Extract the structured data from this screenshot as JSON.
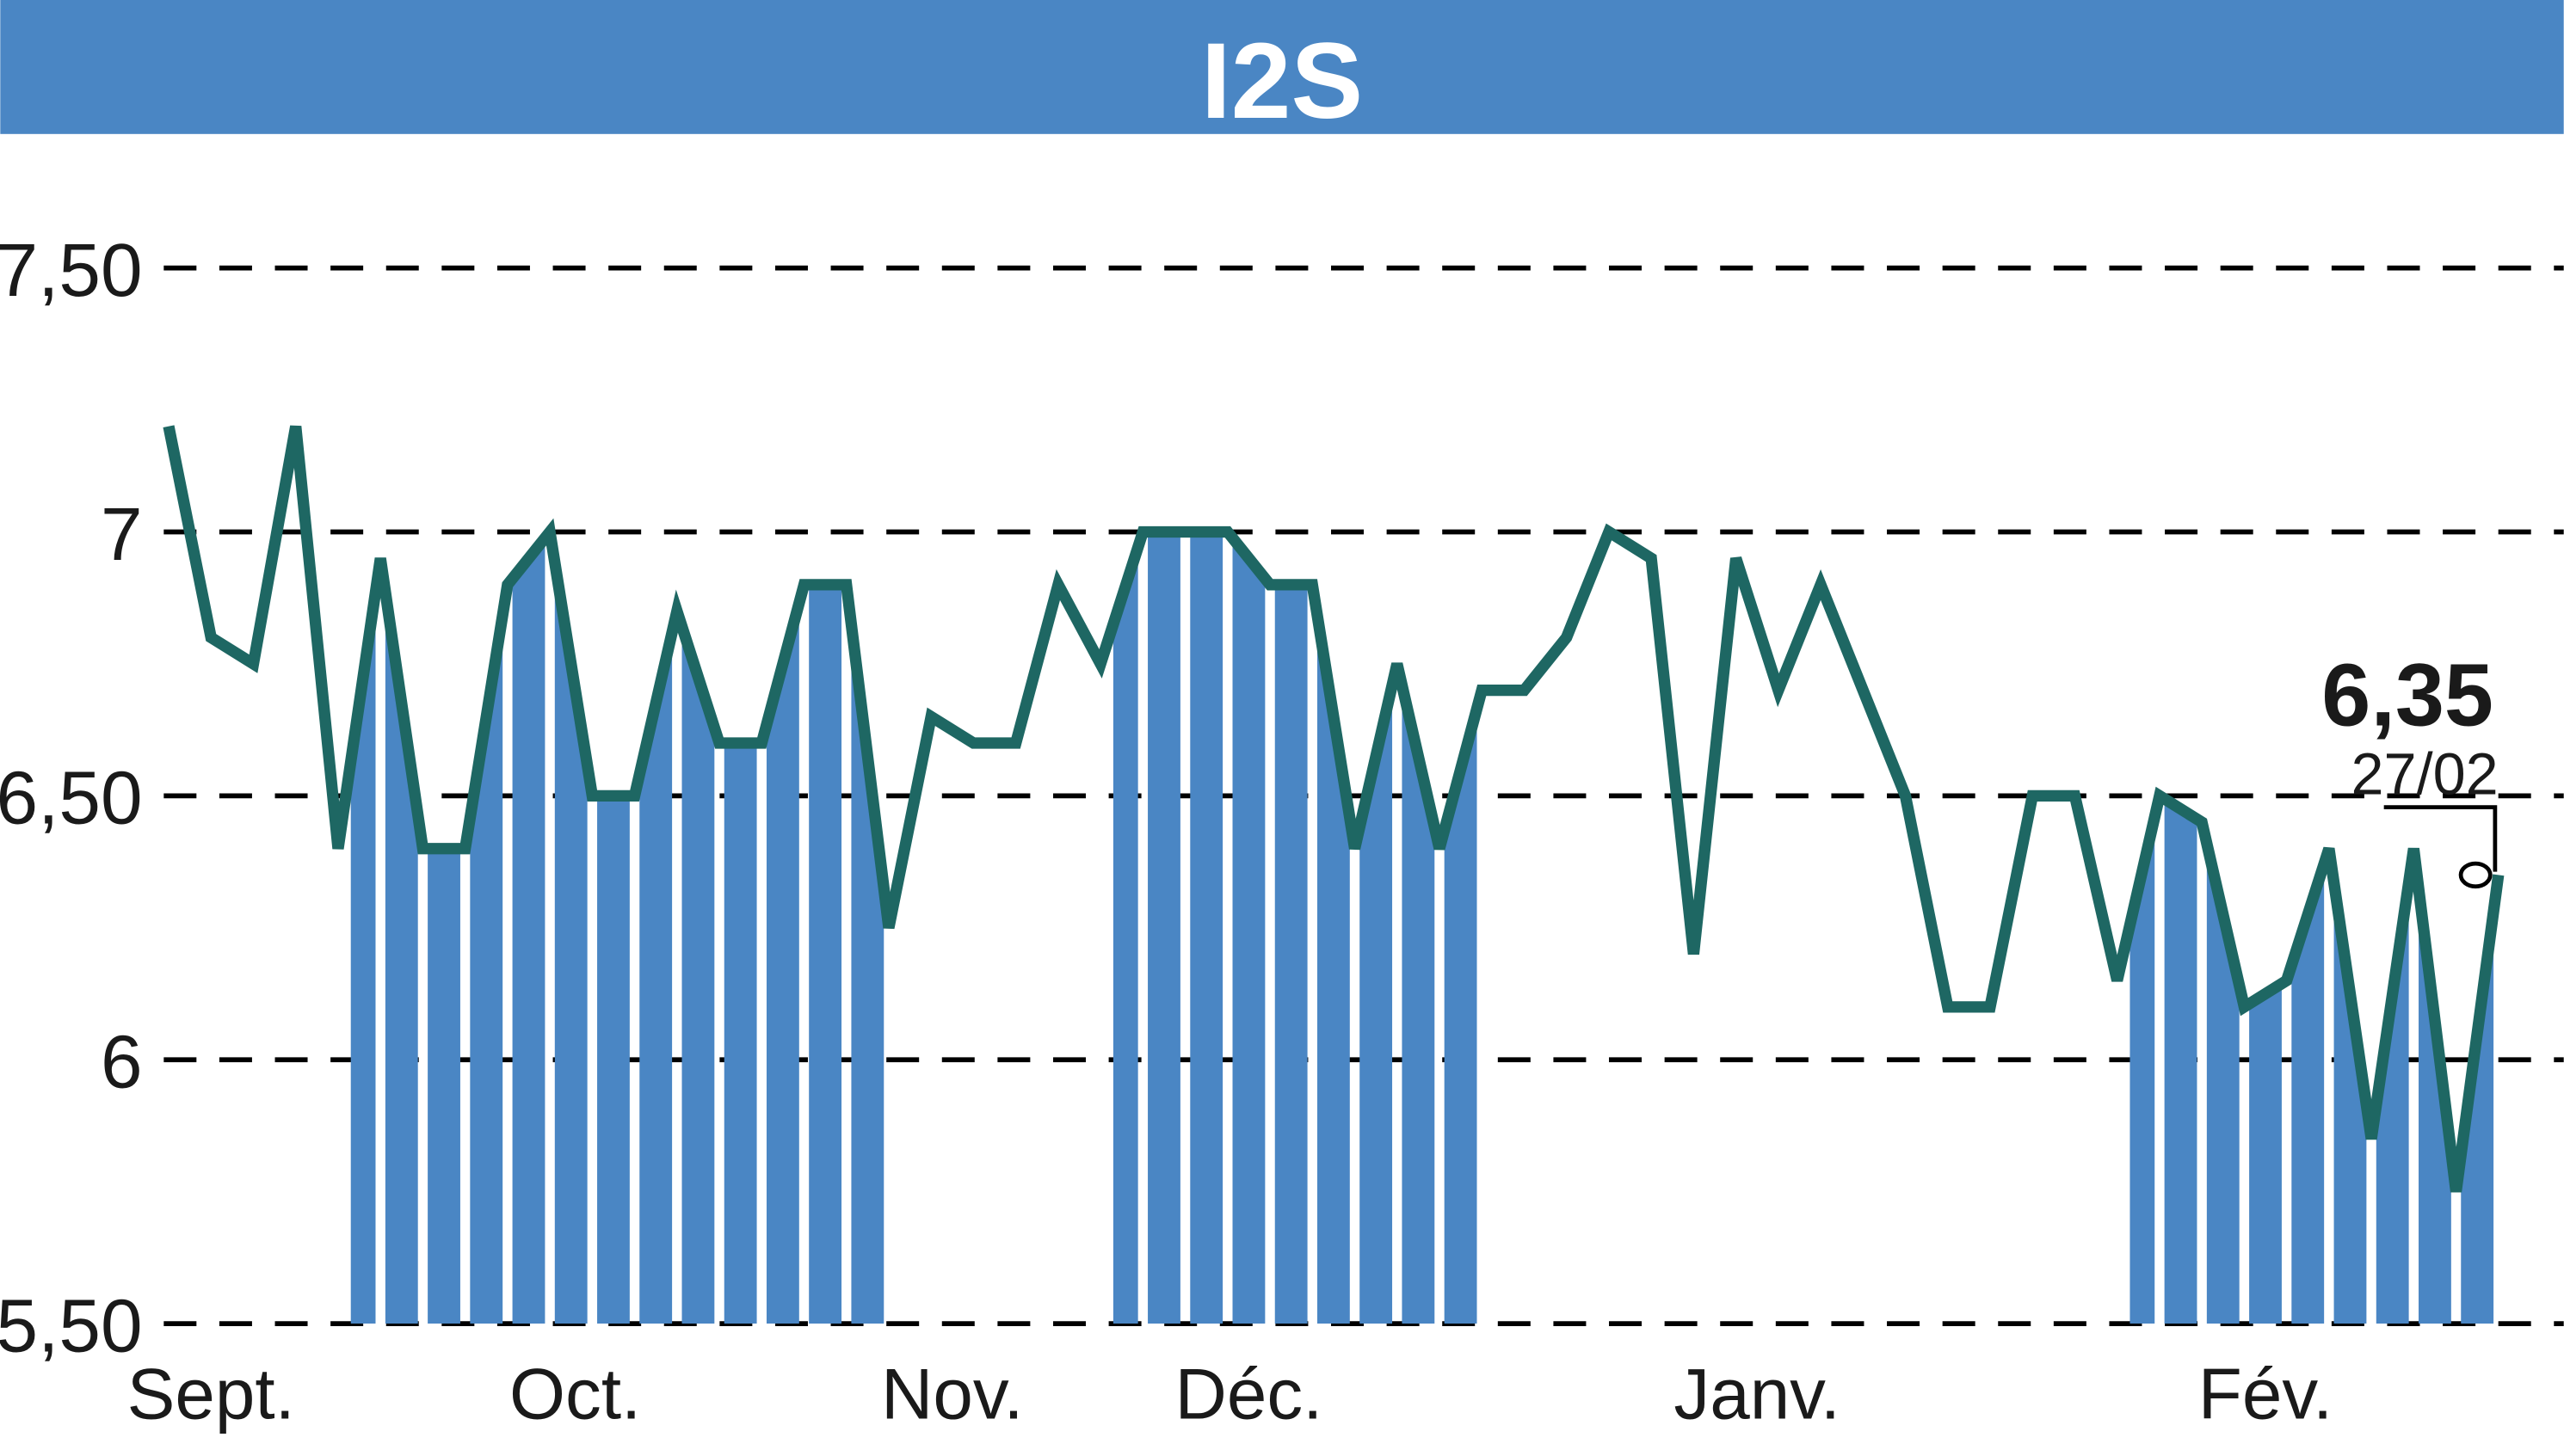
{
  "chart_data": {
    "type": "line",
    "title": "I2S",
    "xlabel": "",
    "ylabel": "",
    "ylim": [
      5.5,
      7.5
    ],
    "yticks": [
      {
        "value": 7.5,
        "label": "7,50"
      },
      {
        "value": 7.0,
        "label": "7"
      },
      {
        "value": 6.5,
        "label": "6,50"
      },
      {
        "value": 6.0,
        "label": "6"
      },
      {
        "value": 5.5,
        "label": "5,50"
      }
    ],
    "grid": "horizontal-dashed",
    "months": [
      {
        "label": "Sept.",
        "index": 1.0
      },
      {
        "label": "Oct.",
        "index": 9.6
      },
      {
        "label": "Nov.",
        "index": 18.5
      },
      {
        "label": "Déc.",
        "index": 25.5
      },
      {
        "label": "Janv.",
        "index": 37.5
      },
      {
        "label": "Fév.",
        "index": 49.5
      }
    ],
    "shaded_ranges": [
      [
        4.3,
        17.2
      ],
      [
        22.3,
        31.2
      ],
      [
        46.3,
        55
      ]
    ],
    "series": [
      {
        "name": "I2S",
        "color": "#1e6763",
        "values": [
          7.2,
          6.8,
          6.75,
          7.2,
          6.4,
          6.95,
          6.4,
          6.4,
          6.9,
          7.0,
          6.5,
          6.5,
          6.85,
          6.6,
          6.6,
          6.9,
          6.9,
          6.25,
          6.65,
          6.6,
          6.6,
          6.9,
          6.75,
          7.0,
          7.0,
          7.0,
          6.9,
          6.9,
          6.4,
          6.75,
          6.4,
          6.7,
          6.7,
          6.8,
          7.0,
          6.95,
          6.2,
          6.95,
          6.7,
          6.9,
          6.7,
          6.5,
          6.1,
          6.1,
          6.5,
          6.5,
          6.15,
          6.5,
          6.45,
          6.1,
          6.15,
          6.4,
          5.85,
          6.4,
          5.75,
          6.35
        ]
      }
    ],
    "annotation": {
      "value_label": "6,35",
      "date_label": "27/02"
    },
    "colors": {
      "header": "#4a86c4",
      "bars": "#4a86c4",
      "line": "#1e6763"
    }
  }
}
